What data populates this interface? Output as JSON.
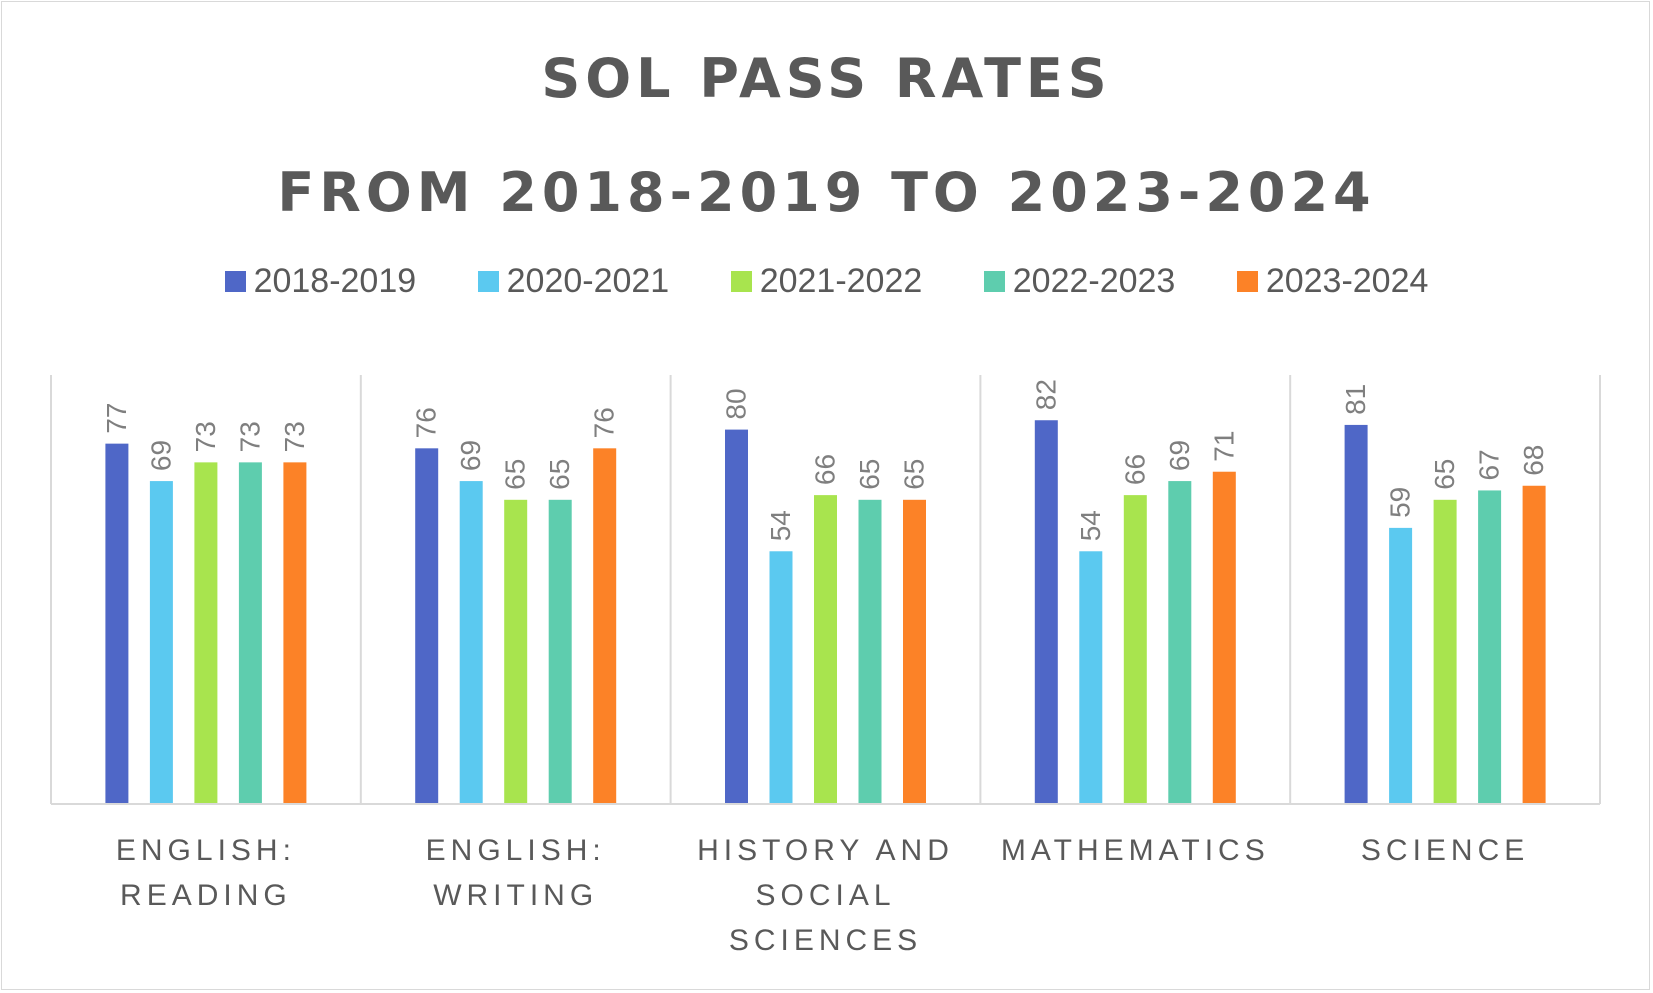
{
  "chart_data": {
    "type": "bar",
    "title_lines": [
      "SOL PASS RATES",
      "FROM 2018-2019 TO 2023-2024"
    ],
    "categories": [
      [
        "ENGLISH:",
        "READING"
      ],
      [
        "ENGLISH:",
        "WRITING"
      ],
      [
        "HISTORY AND",
        "SOCIAL",
        "SCIENCES"
      ],
      [
        "MATHEMATICS"
      ],
      [
        "SCIENCE"
      ]
    ],
    "series": [
      {
        "name": "2018-2019",
        "color": "#4f67c7",
        "values": [
          77,
          76,
          80,
          82,
          81
        ]
      },
      {
        "name": "2020-2021",
        "color": "#5bc9f0",
        "values": [
          69,
          69,
          54,
          54,
          59
        ]
      },
      {
        "name": "2021-2022",
        "color": "#a8e44e",
        "values": [
          73,
          65,
          66,
          66,
          65
        ]
      },
      {
        "name": "2022-2023",
        "color": "#5ecdae",
        "values": [
          73,
          65,
          65,
          69,
          67
        ]
      },
      {
        "name": "2023-2024",
        "color": "#fc8227",
        "values": [
          73,
          76,
          65,
          71,
          68
        ]
      }
    ],
    "ylim": [
      0,
      100
    ],
    "grid": false,
    "data_labels": true,
    "legend_position": "top"
  }
}
